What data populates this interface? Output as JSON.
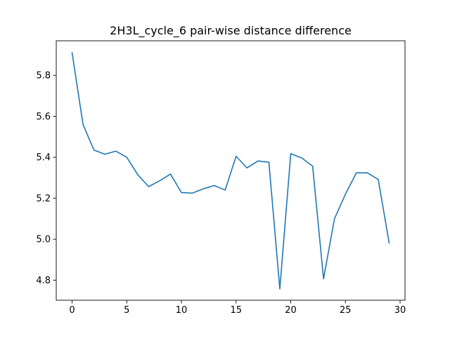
{
  "chart_data": {
    "type": "line",
    "title": "2H3L_cycle_6 pair-wise distance difference",
    "xlabel": "",
    "ylabel": "",
    "xlim": [
      -1.45,
      30.45
    ],
    "ylim": [
      4.702,
      5.969
    ],
    "x_ticks": [
      0,
      5,
      10,
      15,
      20,
      25,
      30
    ],
    "y_ticks": [
      4.8,
      5.0,
      5.2,
      5.4,
      5.6,
      5.8
    ],
    "x_tick_labels": [
      "0",
      "5",
      "10",
      "15",
      "20",
      "25",
      "30"
    ],
    "y_tick_labels": [
      "4.8",
      "5.0",
      "5.2",
      "5.4",
      "5.6",
      "5.8"
    ],
    "grid": false,
    "legend": "none",
    "series": [
      {
        "color": "#1f77b4",
        "x": [
          0,
          1,
          2,
          3,
          4,
          5,
          6,
          7,
          8,
          9,
          10,
          11,
          12,
          13,
          14,
          15,
          16,
          17,
          18,
          19,
          20,
          21,
          22,
          23,
          24,
          25,
          26,
          27,
          28,
          29
        ],
        "values": [
          5.91,
          5.56,
          5.435,
          5.415,
          5.43,
          5.4,
          5.315,
          5.257,
          5.285,
          5.318,
          5.228,
          5.225,
          5.246,
          5.262,
          5.24,
          5.405,
          5.348,
          5.382,
          5.376,
          4.757,
          5.418,
          5.397,
          5.357,
          4.807,
          5.1,
          5.22,
          5.324,
          5.324,
          5.292,
          4.982
        ]
      }
    ]
  }
}
